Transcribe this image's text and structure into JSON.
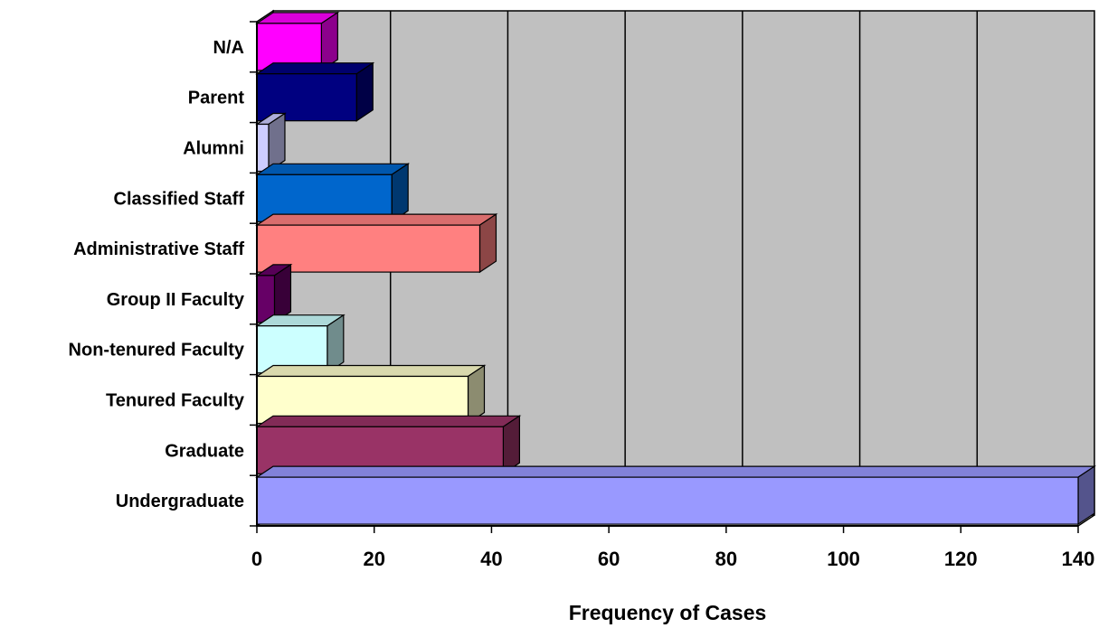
{
  "chart_data": {
    "type": "bar",
    "orientation": "horizontal",
    "style": "3d",
    "title": "",
    "xlabel": "Frequency of Cases",
    "ylabel": "",
    "xlim": [
      0,
      140
    ],
    "x_ticks": [
      0,
      20,
      40,
      60,
      80,
      100,
      120,
      140
    ],
    "grid": true,
    "legend": "none",
    "plot_background": "#c0c0c0",
    "categories": [
      "Undergraduate",
      "Graduate",
      "Tenured Faculty",
      "Non-tenured Faculty",
      "Group II Faculty",
      "Administrative Staff",
      "Classified Staff",
      "Alumni",
      "Parent",
      "N/A"
    ],
    "values": [
      140,
      42,
      36,
      12,
      3,
      38,
      23,
      2,
      17,
      11
    ],
    "colors": [
      "#9999ff",
      "#993366",
      "#ffffcc",
      "#ccffff",
      "#660066",
      "#ff8080",
      "#0066cc",
      "#ccccff",
      "#000080",
      "#ff00ff"
    ]
  }
}
